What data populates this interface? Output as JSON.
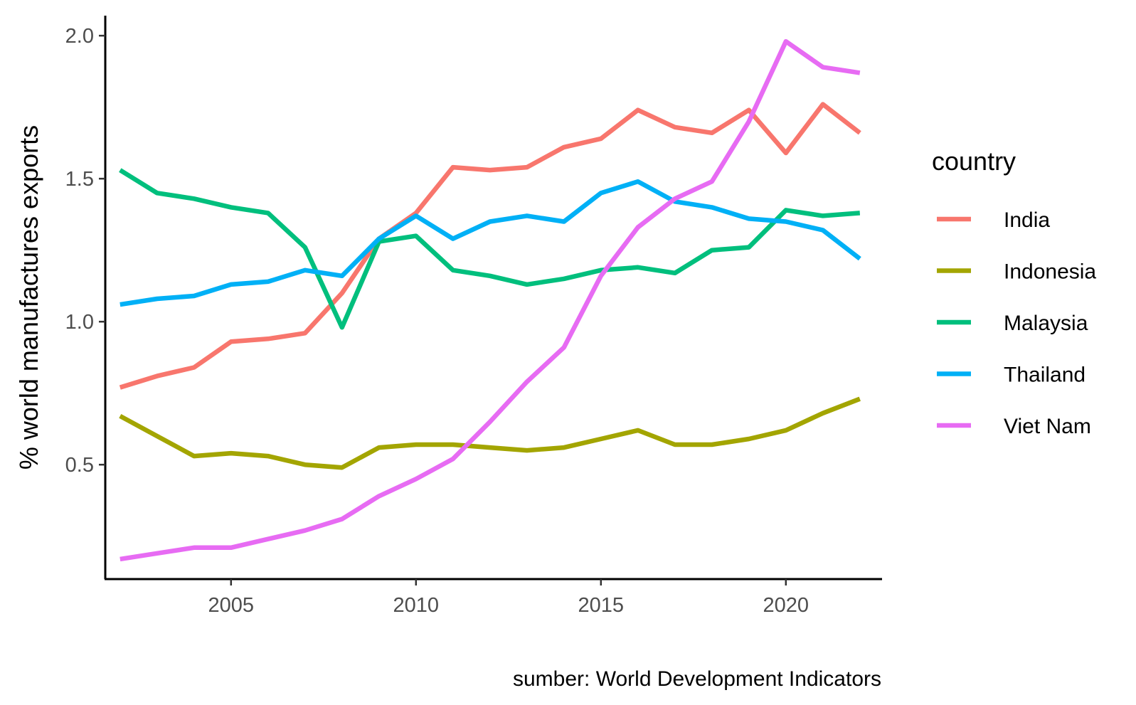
{
  "chart_data": {
    "type": "line",
    "title": "",
    "xlabel": "",
    "ylabel": "% world manufactures exports",
    "caption": "sumber: World Development Indicators",
    "legend_title": "country",
    "legend_position": "right",
    "grid": false,
    "xlim": [
      2001.6,
      2022.6
    ],
    "ylim": [
      0.1,
      2.07
    ],
    "x_ticks": [
      2005,
      2010,
      2015,
      2020
    ],
    "y_ticks": [
      0.5,
      1.0,
      1.5,
      2.0
    ],
    "y_tick_labels": [
      "0.5",
      "1.0",
      "1.5",
      "2.0"
    ],
    "x": [
      2002,
      2003,
      2004,
      2005,
      2006,
      2007,
      2008,
      2009,
      2010,
      2011,
      2012,
      2013,
      2014,
      2015,
      2016,
      2017,
      2018,
      2019,
      2020,
      2021,
      2022
    ],
    "series": [
      {
        "name": "India",
        "color": "#F8766D",
        "values": [
          0.77,
          0.81,
          0.84,
          0.93,
          0.94,
          0.96,
          1.1,
          1.29,
          1.38,
          1.54,
          1.53,
          1.54,
          1.61,
          1.64,
          1.74,
          1.68,
          1.66,
          1.74,
          1.59,
          1.76,
          1.66
        ]
      },
      {
        "name": "Indonesia",
        "color": "#A3A500",
        "values": [
          0.67,
          0.6,
          0.53,
          0.54,
          0.53,
          0.5,
          0.49,
          0.56,
          0.57,
          0.57,
          0.56,
          0.55,
          0.56,
          0.59,
          0.62,
          0.57,
          0.57,
          0.59,
          0.62,
          0.68,
          0.73
        ]
      },
      {
        "name": "Malaysia",
        "color": "#00BF7D",
        "values": [
          1.53,
          1.45,
          1.43,
          1.4,
          1.38,
          1.26,
          0.98,
          1.28,
          1.3,
          1.18,
          1.16,
          1.13,
          1.15,
          1.18,
          1.19,
          1.17,
          1.25,
          1.26,
          1.39,
          1.37,
          1.38
        ]
      },
      {
        "name": "Thailand",
        "color": "#00B0F6",
        "values": [
          1.06,
          1.08,
          1.09,
          1.13,
          1.14,
          1.18,
          1.16,
          1.29,
          1.37,
          1.29,
          1.35,
          1.37,
          1.35,
          1.45,
          1.49,
          1.42,
          1.4,
          1.36,
          1.35,
          1.32,
          1.22
        ]
      },
      {
        "name": "Viet Nam",
        "color": "#E76BF3",
        "values": [
          0.17,
          0.19,
          0.21,
          0.21,
          0.24,
          0.27,
          0.31,
          0.39,
          0.45,
          0.52,
          0.65,
          0.79,
          0.91,
          1.16,
          1.33,
          1.43,
          1.49,
          1.7,
          1.98,
          1.89,
          1.87
        ]
      }
    ]
  }
}
